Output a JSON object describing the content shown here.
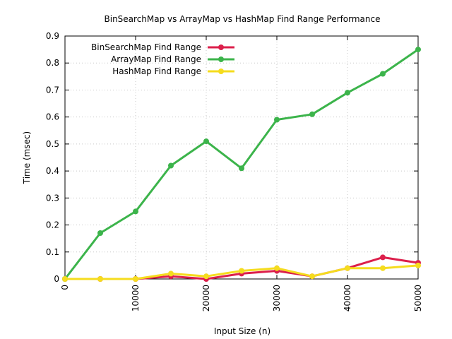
{
  "chart_data": {
    "type": "line",
    "title": "BinSearchMap vs ArrayMap vs HashMap Find Range Performance",
    "xlabel": "Input Size (n)",
    "ylabel": "Time (msec)",
    "xlim": [
      0,
      50000
    ],
    "ylim": [
      0,
      0.9
    ],
    "x_ticks": [
      0,
      10000,
      20000,
      30000,
      40000,
      50000
    ],
    "y_ticks": [
      0,
      0.1,
      0.2,
      0.3,
      0.4,
      0.5,
      0.6,
      0.7,
      0.8,
      0.9
    ],
    "x_tick_labels": [
      "0",
      "10000",
      "20000",
      "30000",
      "40000",
      "50000"
    ],
    "y_tick_labels": [
      "0",
      "0.1",
      "0.2",
      "0.3",
      "0.4",
      "0.5",
      "0.6",
      "0.7",
      "0.8",
      "0.9"
    ],
    "grid": true,
    "legend_position": "top-left",
    "x": [
      0,
      5000,
      10000,
      15000,
      20000,
      25000,
      30000,
      35000,
      40000,
      45000,
      50000
    ],
    "series": [
      {
        "name": "BinSearchMap Find Range",
        "color": "#dc1f4b",
        "values": [
          0,
          0,
          0,
          0.01,
          0,
          0.02,
          0.03,
          0.01,
          0.04,
          0.08,
          0.06
        ]
      },
      {
        "name": "ArrayMap Find Range",
        "color": "#3cb44b",
        "values": [
          0,
          0.17,
          0.25,
          0.42,
          0.51,
          0.41,
          0.59,
          0.61,
          0.69,
          0.76,
          0.85
        ]
      },
      {
        "name": "HashMap Find Range",
        "color": "#f5dc1e",
        "values": [
          0,
          0,
          0,
          0.02,
          0.01,
          0.03,
          0.04,
          0.01,
          0.04,
          0.04,
          0.05
        ]
      }
    ]
  }
}
